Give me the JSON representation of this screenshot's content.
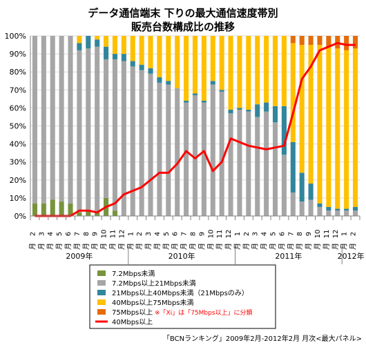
{
  "chart_data": {
    "type": "bar",
    "stacked": true,
    "title_line1": "データ通信端末 下りの最大通信速度帯別",
    "title_line2": "販売台数構成比の推移",
    "source": "「BCNランキング」2009年2月-2012年2月 月次<最大パネル>",
    "ylim": [
      0,
      100
    ],
    "yticks": [
      "0%",
      "10%",
      "20%",
      "30%",
      "40%",
      "50%",
      "60%",
      "70%",
      "80%",
      "90%",
      "100%"
    ],
    "categories": [
      "2",
      "3",
      "4",
      "5",
      "6",
      "7",
      "8",
      "9",
      "10",
      "11",
      "12",
      "1",
      "2",
      "3",
      "4",
      "5",
      "6",
      "7",
      "8",
      "9",
      "10",
      "11",
      "12",
      "1",
      "2",
      "3",
      "4",
      "5",
      "6",
      "7",
      "8",
      "9",
      "10",
      "11",
      "12",
      "1",
      "2"
    ],
    "years": [
      {
        "label": "2009年",
        "start": 0,
        "end": 10
      },
      {
        "label": "2010年",
        "start": 11,
        "end": 22
      },
      {
        "label": "2011年",
        "start": 23,
        "end": 34
      },
      {
        "label": "2012年",
        "start": 35,
        "end": 36
      }
    ],
    "series": [
      {
        "name": "7.2Mbps未満",
        "color": "#77933c",
        "values": [
          7,
          7,
          9,
          8,
          7,
          2,
          3,
          2,
          10,
          3,
          0,
          0,
          0,
          0,
          0,
          0,
          0,
          0,
          0,
          0,
          0,
          0,
          0,
          0,
          0,
          0,
          0,
          0,
          0,
          0,
          0,
          0,
          0,
          0,
          0,
          0,
          0
        ]
      },
      {
        "name": "7.2Mbps以上21Mbps未満",
        "color": "#a6a6a6",
        "values": [
          93,
          93,
          91,
          92,
          93,
          90,
          90,
          92,
          77,
          84,
          86,
          83,
          81,
          79,
          74,
          73,
          71,
          63,
          67,
          63,
          73,
          69,
          57,
          59,
          58,
          55,
          58,
          52,
          34,
          13,
          8,
          9,
          5,
          3,
          3,
          3,
          3
        ]
      },
      {
        "name": "21Mbps以上40Mbps未満（21Mbpsのみ）",
        "color": "#31859c",
        "values": [
          0,
          0,
          0,
          0,
          0,
          4,
          7,
          4,
          7,
          3,
          4,
          3,
          3,
          3,
          3,
          2,
          0,
          1,
          1,
          1,
          2,
          1,
          2,
          1,
          1,
          7,
          5,
          9,
          27,
          28,
          16,
          9,
          2,
          2,
          1,
          1,
          2
        ]
      },
      {
        "name": "40Mbps以上75Mbps未満",
        "color": "#ffc000",
        "values": [
          0,
          0,
          0,
          0,
          0,
          4,
          0,
          2,
          6,
          10,
          10,
          14,
          16,
          18,
          23,
          25,
          29,
          36,
          32,
          36,
          25,
          30,
          41,
          40,
          41,
          38,
          37,
          39,
          39,
          55,
          71,
          77,
          88,
          89,
          89,
          88,
          88
        ]
      },
      {
        "name": "75Mbps以上",
        "note": "※「Xi」は「75Mbps以上」に分類",
        "color": "#e46c0a",
        "values": [
          0,
          0,
          0,
          0,
          0,
          0,
          0,
          0,
          0,
          0,
          0,
          0,
          0,
          0,
          0,
          0,
          0,
          0,
          0,
          0,
          0,
          0,
          0,
          0,
          0,
          0,
          0,
          0,
          0,
          4,
          5,
          5,
          5,
          6,
          7,
          8,
          7
        ]
      },
      {
        "name": "40Mbps以上",
        "color": "#ff0000",
        "type": "line",
        "values": [
          0,
          0,
          0,
          0,
          0,
          3,
          3,
          2,
          5,
          7,
          12,
          14,
          16,
          20,
          24,
          24,
          29,
          36,
          32,
          36,
          25,
          30,
          43,
          41,
          39,
          38,
          37,
          38,
          39,
          57,
          76,
          83,
          92,
          94,
          96,
          95,
          95
        ]
      }
    ]
  }
}
